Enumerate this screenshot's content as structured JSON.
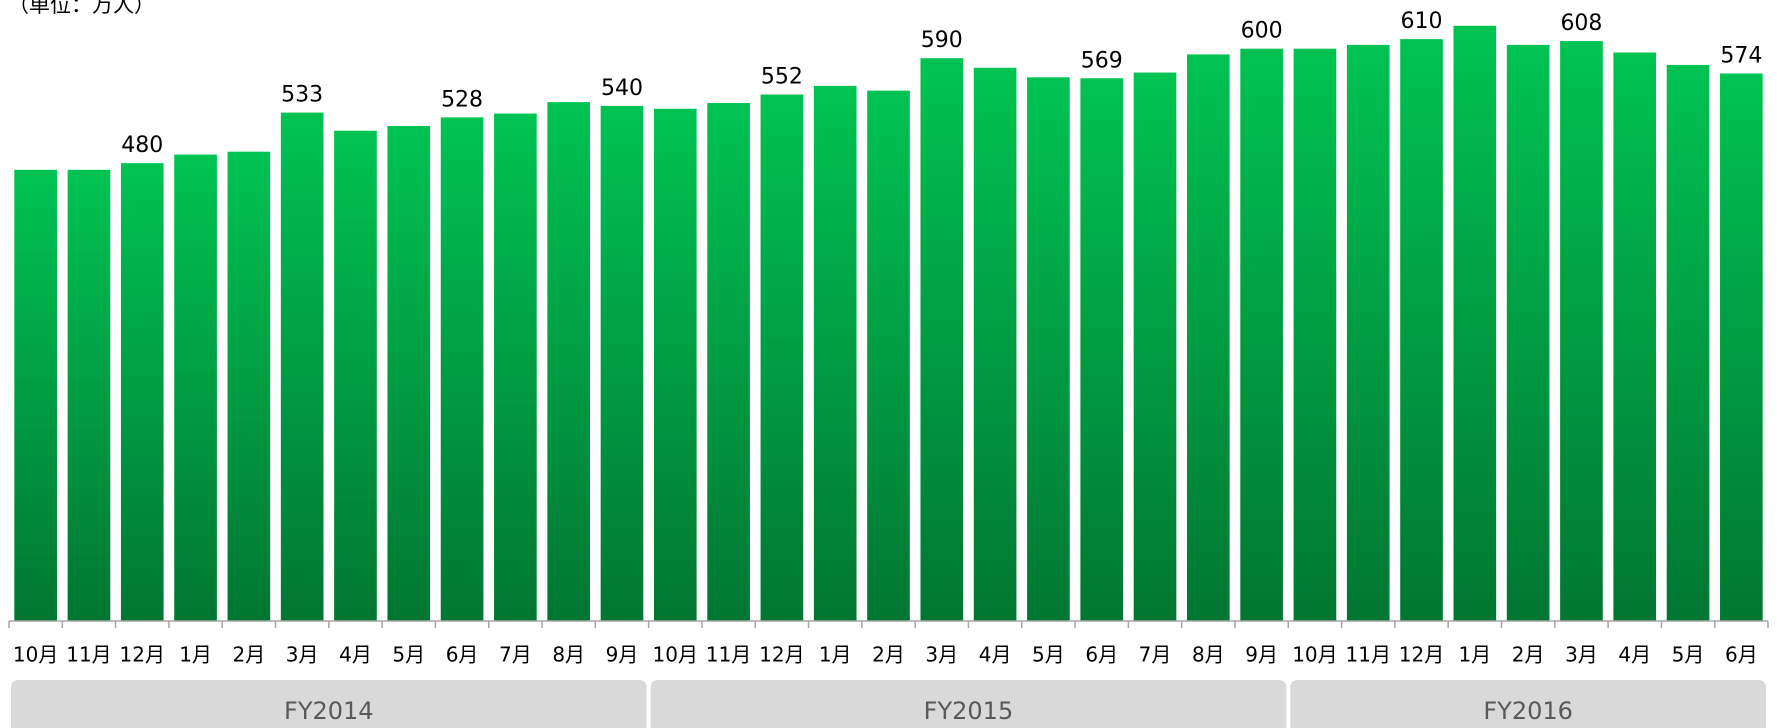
{
  "chart_data": {
    "type": "bar",
    "unit_note": "（単位：万人）",
    "categories": [
      "10月",
      "11月",
      "12月",
      "1月",
      "2月",
      "3月",
      "4月",
      "5月",
      "6月",
      "7月",
      "8月",
      "9月",
      "10月",
      "11月",
      "12月",
      "1月",
      "2月",
      "3月",
      "4月",
      "5月",
      "6月",
      "7月",
      "8月",
      "9月",
      "10月",
      "11月",
      "12月",
      "1月",
      "2月",
      "3月",
      "4月",
      "5月",
      "6月"
    ],
    "values": [
      473,
      473,
      480,
      489,
      492,
      533,
      514,
      519,
      528,
      532,
      544,
      540,
      537,
      543,
      552,
      561,
      556,
      590,
      580,
      570,
      569,
      575,
      594,
      600,
      600,
      604,
      610,
      624,
      604,
      608,
      596,
      583,
      574
    ],
    "value_labels": [
      null,
      null,
      "480",
      null,
      null,
      "533",
      null,
      null,
      "528",
      null,
      null,
      "540",
      null,
      null,
      "552",
      null,
      null,
      "590",
      null,
      null,
      "569",
      null,
      null,
      "600",
      null,
      null,
      "610",
      null,
      null,
      "608",
      null,
      null,
      "574"
    ],
    "groups": [
      {
        "label": "FY2014",
        "count": 12
      },
      {
        "label": "FY2015",
        "count": 12
      },
      {
        "label": "FY2016",
        "count": 9
      }
    ],
    "color": "#00b84c",
    "ylim": [
      0,
      650
    ]
  }
}
